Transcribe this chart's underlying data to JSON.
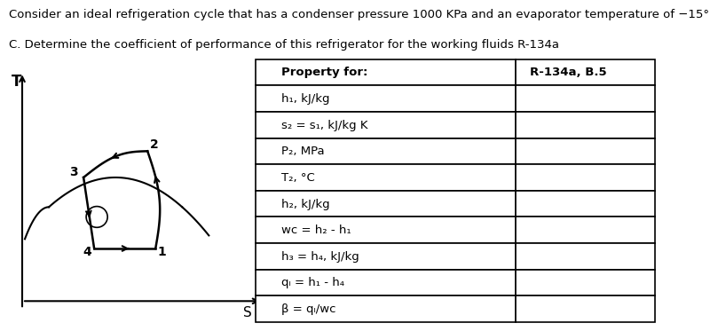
{
  "title_line1": "Consider an ideal refrigeration cycle that has a condenser pressure 1000 KPa and an evaporator temperature of −15°",
  "title_line2": "C. Determine the coefficient of performance of this refrigerator for the working fluids R-134a",
  "table_header": [
    "Property for:",
    "R-134a, B.5"
  ],
  "table_rows": [
    [
      "h₁, kJ/kg",
      ""
    ],
    [
      "s₂ = s₁, kJ/kg K",
      ""
    ],
    [
      "P₂, MPa",
      ""
    ],
    [
      "T₂, °C",
      ""
    ],
    [
      "h₂, kJ/kg",
      ""
    ],
    [
      "wᴄ = h₂ - h₁",
      ""
    ],
    [
      "h₃ = h₄, kJ/kg",
      ""
    ],
    [
      "qₗ = h₁ - h₄",
      ""
    ],
    [
      "β = qₗ/wᴄ",
      ""
    ]
  ],
  "bg_color": "#ffffff",
  "text_color": "#000000",
  "font_size_title": 9.5,
  "font_size_table": 9.5
}
